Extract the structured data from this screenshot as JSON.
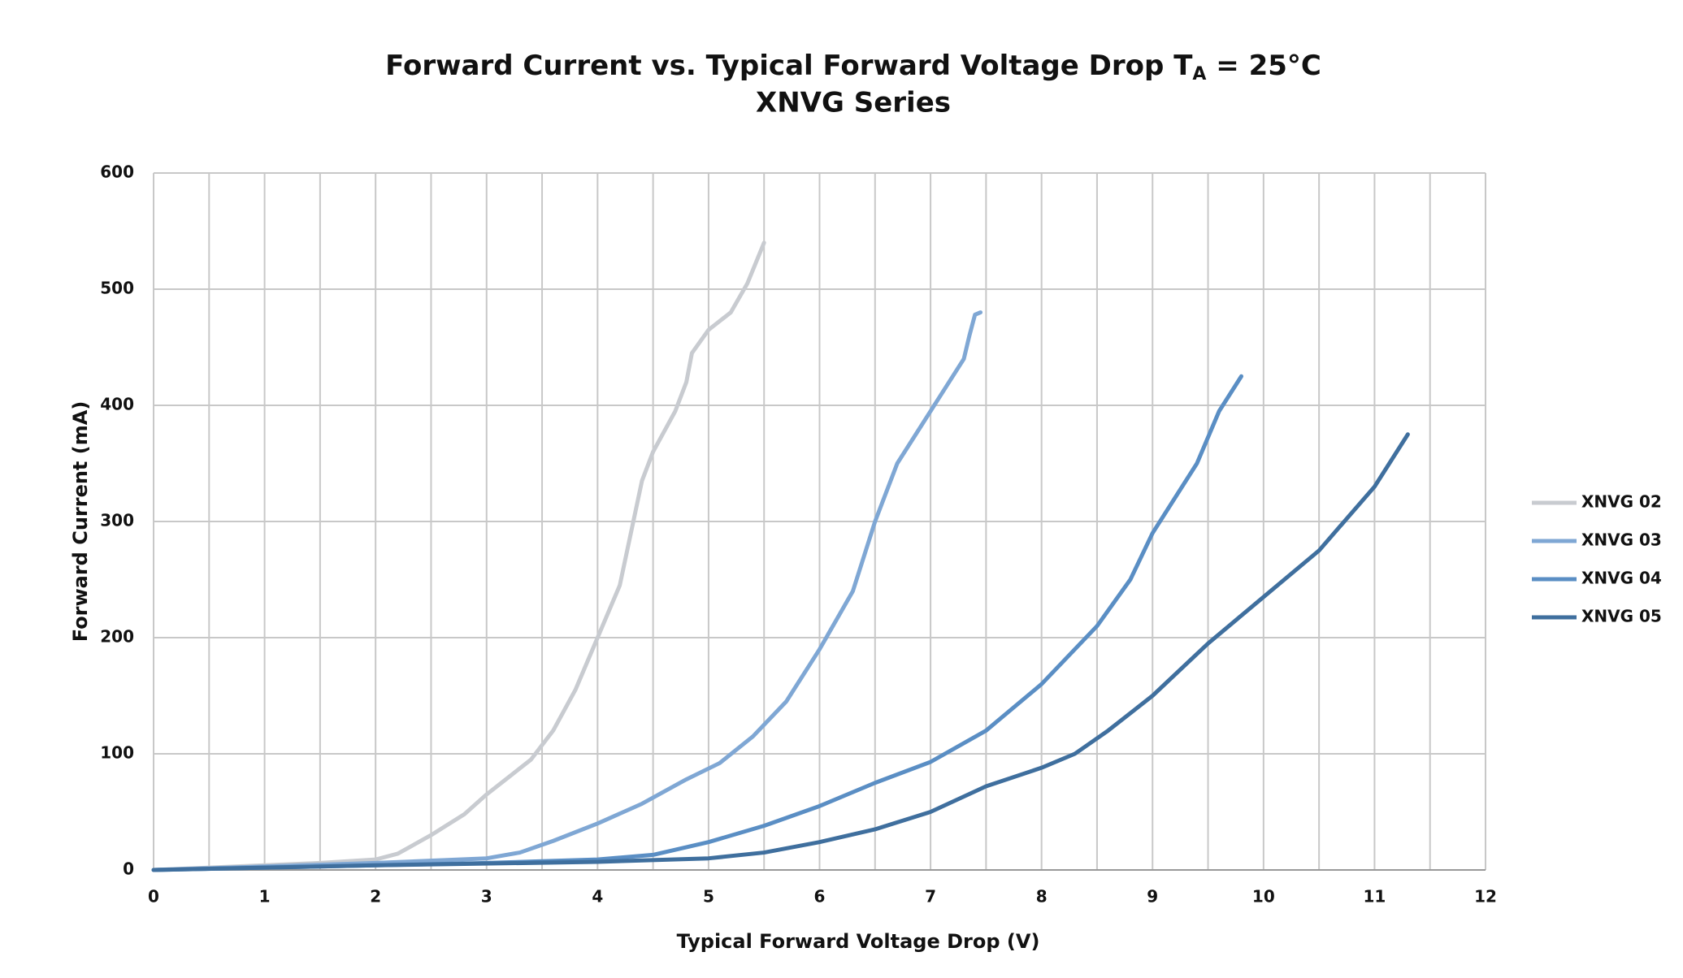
{
  "chart_data": {
    "type": "line",
    "title": [
      "Forward Current vs. Typical Forward Voltage Drop T",
      "A",
      " = 25°C"
    ],
    "subtitle": "XNVG Series",
    "x_label": "Typical Forward Voltage Drop (V)",
    "y_label": "Forward Current (mA)",
    "xlim": [
      0,
      12
    ],
    "xticks": [
      0,
      1,
      2,
      3,
      4,
      5,
      6,
      7,
      8,
      9,
      10,
      11,
      12
    ],
    "xgrid": [
      0.5,
      1.5,
      2.5,
      3.5,
      4.5,
      5.5,
      6.5,
      7.5,
      8.5,
      9.5,
      10.5,
      11.5
    ],
    "ylim": [
      0,
      600
    ],
    "yticks": [
      0,
      100,
      200,
      300,
      400,
      500,
      600
    ],
    "grid": true,
    "legend": "right",
    "series": [
      {
        "name": "XNVG 02",
        "color": "#c8cbd0",
        "x": [
          0,
          0.5,
          1,
          1.5,
          2,
          2.2,
          2.5,
          2.8,
          3,
          3.2,
          3.4,
          3.6,
          3.8,
          4,
          4.2,
          4.3,
          4.4,
          4.5,
          4.7,
          4.8,
          4.85,
          5,
          5.2,
          5.35,
          5.5
        ],
        "values": [
          0,
          2,
          4,
          6,
          9,
          14,
          30,
          48,
          65,
          80,
          95,
          120,
          155,
          200,
          245,
          290,
          335,
          360,
          395,
          420,
          445,
          465,
          480,
          505,
          540
        ]
      },
      {
        "name": "XNVG 03",
        "color": "#7fa7d4",
        "x": [
          0,
          1,
          2,
          3,
          3.3,
          3.6,
          4,
          4.4,
          4.8,
          5.1,
          5.4,
          5.7,
          6,
          6.3,
          6.5,
          6.7,
          6.9,
          7.1,
          7.3,
          7.35,
          7.4,
          7.45
        ],
        "values": [
          0,
          3,
          6,
          10,
          15,
          25,
          40,
          57,
          78,
          92,
          115,
          145,
          190,
          240,
          300,
          350,
          380,
          410,
          440,
          460,
          478,
          480
        ]
      },
      {
        "name": "XNVG 04",
        "color": "#5a8ec4",
        "x": [
          0,
          1,
          2,
          3,
          4,
          4.5,
          5,
          5.5,
          6,
          6.5,
          7,
          7.5,
          8,
          8.5,
          8.8,
          9,
          9.2,
          9.4,
          9.6,
          9.8
        ],
        "values": [
          0,
          2,
          4,
          6,
          9,
          13,
          24,
          38,
          55,
          75,
          93,
          120,
          160,
          210,
          250,
          290,
          320,
          350,
          395,
          425
        ]
      },
      {
        "name": "XNVG 05",
        "color": "#3f6f9e",
        "x": [
          0,
          2,
          4,
          5,
          5.5,
          6,
          6.5,
          7,
          7.5,
          8,
          8.3,
          8.6,
          9,
          9.5,
          10,
          10.5,
          11,
          11.3
        ],
        "values": [
          0,
          4,
          7,
          10,
          15,
          24,
          35,
          50,
          72,
          88,
          100,
          120,
          150,
          195,
          235,
          275,
          330,
          375
        ]
      }
    ]
  }
}
